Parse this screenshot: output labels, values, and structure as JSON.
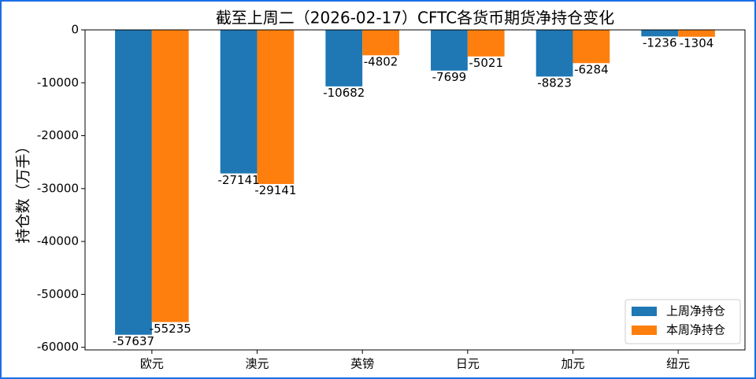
{
  "chart_data": {
    "type": "bar",
    "title": "截至上周二（2026-02-17）CFTC各货币期货净持仓变化",
    "y_label": "持仓数（万手）",
    "categories": [
      "欧元",
      "澳元",
      "英镑",
      "日元",
      "加元",
      "纽元"
    ],
    "series": [
      {
        "name": "上周净持仓",
        "color": "#1f77b4",
        "values": [
          -57637,
          -27141,
          -10682,
          -7699,
          -8823,
          -1236
        ]
      },
      {
        "name": "本周净持仓",
        "color": "#ff7f0e",
        "values": [
          -55235,
          -29141,
          -4802,
          -5021,
          -6284,
          -1304
        ]
      }
    ],
    "ylim": [
      -60500,
      0
    ],
    "yticks": [
      0,
      -10000,
      -20000,
      -30000,
      -40000,
      -50000,
      -60000
    ],
    "legend": "lower right",
    "grid": false
  }
}
